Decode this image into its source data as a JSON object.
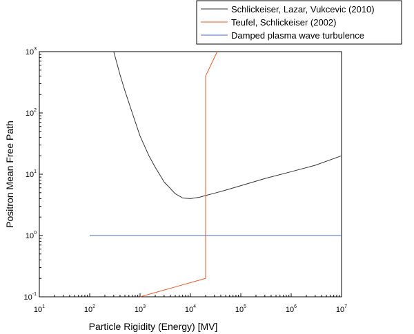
{
  "chart_data": {
    "type": "line",
    "title": "",
    "xlabel": "Particle Rigidity (Energy) [MV]",
    "ylabel": "Positron Mean Free Path",
    "x_scale": "log",
    "y_scale": "log",
    "xlim": [
      10,
      10000000
    ],
    "ylim": [
      0.1,
      1000
    ],
    "x_ticks": [
      {
        "base": "10",
        "exp": "1",
        "value": 10
      },
      {
        "base": "10",
        "exp": "2",
        "value": 100
      },
      {
        "base": "10",
        "exp": "3",
        "value": 1000
      },
      {
        "base": "10",
        "exp": "4",
        "value": 10000
      },
      {
        "base": "10",
        "exp": "5",
        "value": 100000
      },
      {
        "base": "10",
        "exp": "6",
        "value": 1000000
      },
      {
        "base": "10",
        "exp": "7",
        "value": 10000000
      }
    ],
    "y_ticks": [
      {
        "base": "10",
        "exp": "-1",
        "value": 0.1
      },
      {
        "base": "10",
        "exp": "0",
        "value": 1
      },
      {
        "base": "10",
        "exp": "1",
        "value": 10
      },
      {
        "base": "10",
        "exp": "2",
        "value": 100
      },
      {
        "base": "10",
        "exp": "3",
        "value": 1000
      }
    ],
    "grid": false,
    "legend_position": "top-right",
    "series": [
      {
        "name": "Schlickeiser, Lazar, Vukcevic (2010)",
        "color": "#333333",
        "x": [
          300,
          400,
          500,
          700,
          1000,
          1500,
          2000,
          3000,
          5000,
          7000,
          10000,
          15000,
          20000,
          30000,
          50000,
          100000,
          300000,
          1000000,
          3000000,
          10000000
        ],
        "y": [
          1000,
          420,
          230,
          100,
          42,
          20,
          13,
          7.5,
          4.8,
          4.1,
          4.0,
          4.2,
          4.5,
          4.9,
          5.5,
          6.5,
          8.5,
          11,
          14,
          20
        ]
      },
      {
        "name": "Teufel, Schlickeiser (2002)",
        "color": "#e8582a",
        "x": [
          1000,
          20000,
          20000,
          34000
        ],
        "y": [
          0.1,
          0.2,
          400,
          1000
        ]
      },
      {
        "name": "Damped plasma wave turbulence",
        "color": "#4a6ab8",
        "x": [
          100,
          10000000
        ],
        "y": [
          1,
          1
        ]
      }
    ]
  }
}
